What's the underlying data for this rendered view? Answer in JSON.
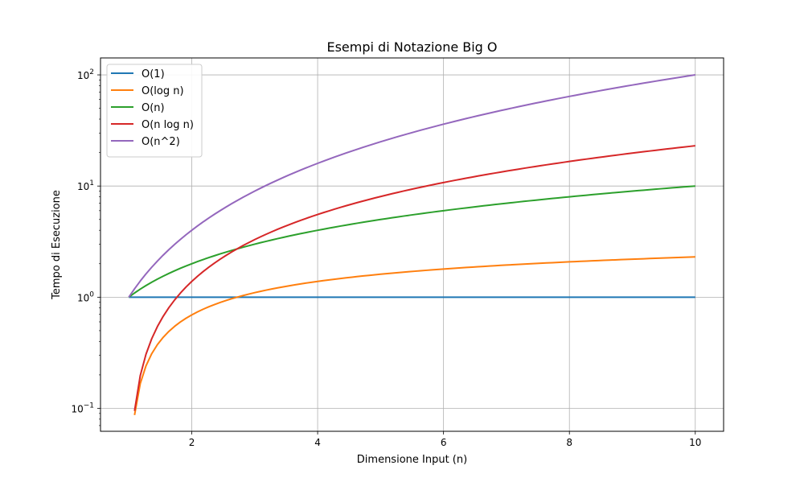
{
  "chart_data": {
    "type": "line",
    "title": "Esempi di Notazione Big O",
    "xlabel": "Dimensione Input (n)",
    "ylabel": "Tempo di Esecuzione",
    "yscale": "log",
    "xlim": [
      0.55,
      10.45
    ],
    "ylim": [
      0.0622,
      142
    ],
    "x_ticks": [
      2,
      4,
      6,
      8,
      10
    ],
    "y_ticks": [
      {
        "value": 0.1,
        "base": "10",
        "exp": "−1"
      },
      {
        "value": 1,
        "base": "10",
        "exp": "0"
      },
      {
        "value": 10,
        "base": "10",
        "exp": "1"
      },
      {
        "value": 100,
        "base": "10",
        "exp": "2"
      }
    ],
    "grid": true,
    "legend_position": "top-left",
    "x_range": [
      1,
      10
    ],
    "series": [
      {
        "name": "O(1)",
        "color": "#1f77b4",
        "function": "constant"
      },
      {
        "name": "O(log n)",
        "color": "#ff7f0e",
        "function": "log"
      },
      {
        "name": "O(n)",
        "color": "#2ca02c",
        "function": "linear"
      },
      {
        "name": "O(n log n)",
        "color": "#d62728",
        "function": "nlogn"
      },
      {
        "name": "O(n^2)",
        "color": "#9467bd",
        "function": "quadratic"
      }
    ]
  }
}
